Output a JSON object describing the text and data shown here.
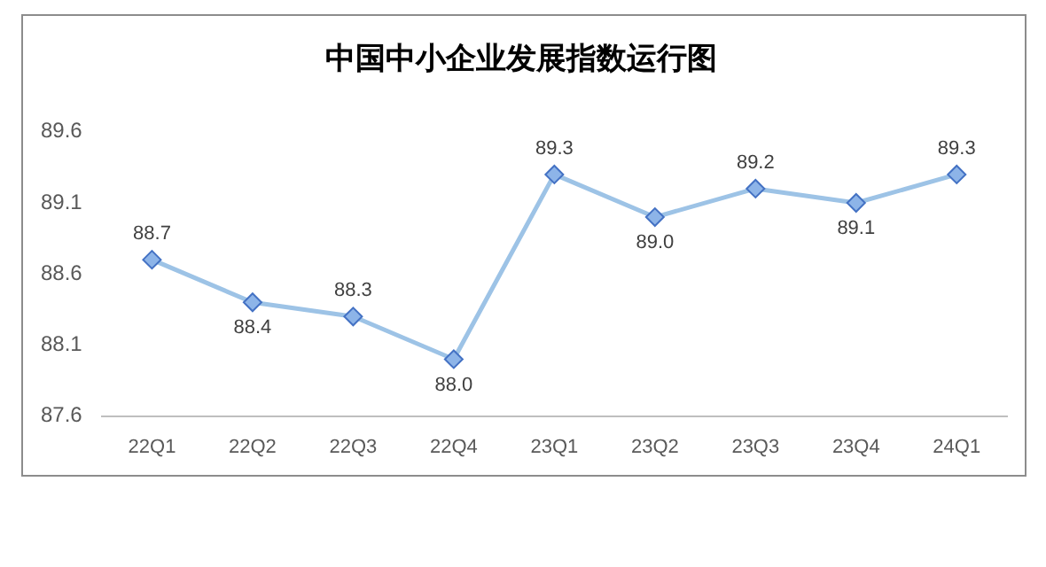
{
  "chart_data": {
    "type": "line",
    "title": "中国中小企业发展指数运行图",
    "categories": [
      "22Q1",
      "22Q2",
      "22Q3",
      "22Q4",
      "23Q1",
      "23Q2",
      "23Q3",
      "23Q4",
      "24Q1"
    ],
    "series": [
      {
        "color": "#9dc3e6",
        "values": [
          88.7,
          88.4,
          88.3,
          88.0,
          89.3,
          89.0,
          89.2,
          89.1,
          89.3
        ],
        "value_labels": [
          "88.7",
          "88.4",
          "88.3",
          "88.0",
          "89.3",
          "89.0",
          "89.2",
          "89.1",
          "89.3"
        ]
      }
    ],
    "ylim": [
      87.6,
      89.6
    ],
    "yticks": [
      87.6,
      88.1,
      88.6,
      89.1,
      89.6
    ],
    "grid": false,
    "legend": false,
    "marker": "diamond"
  }
}
